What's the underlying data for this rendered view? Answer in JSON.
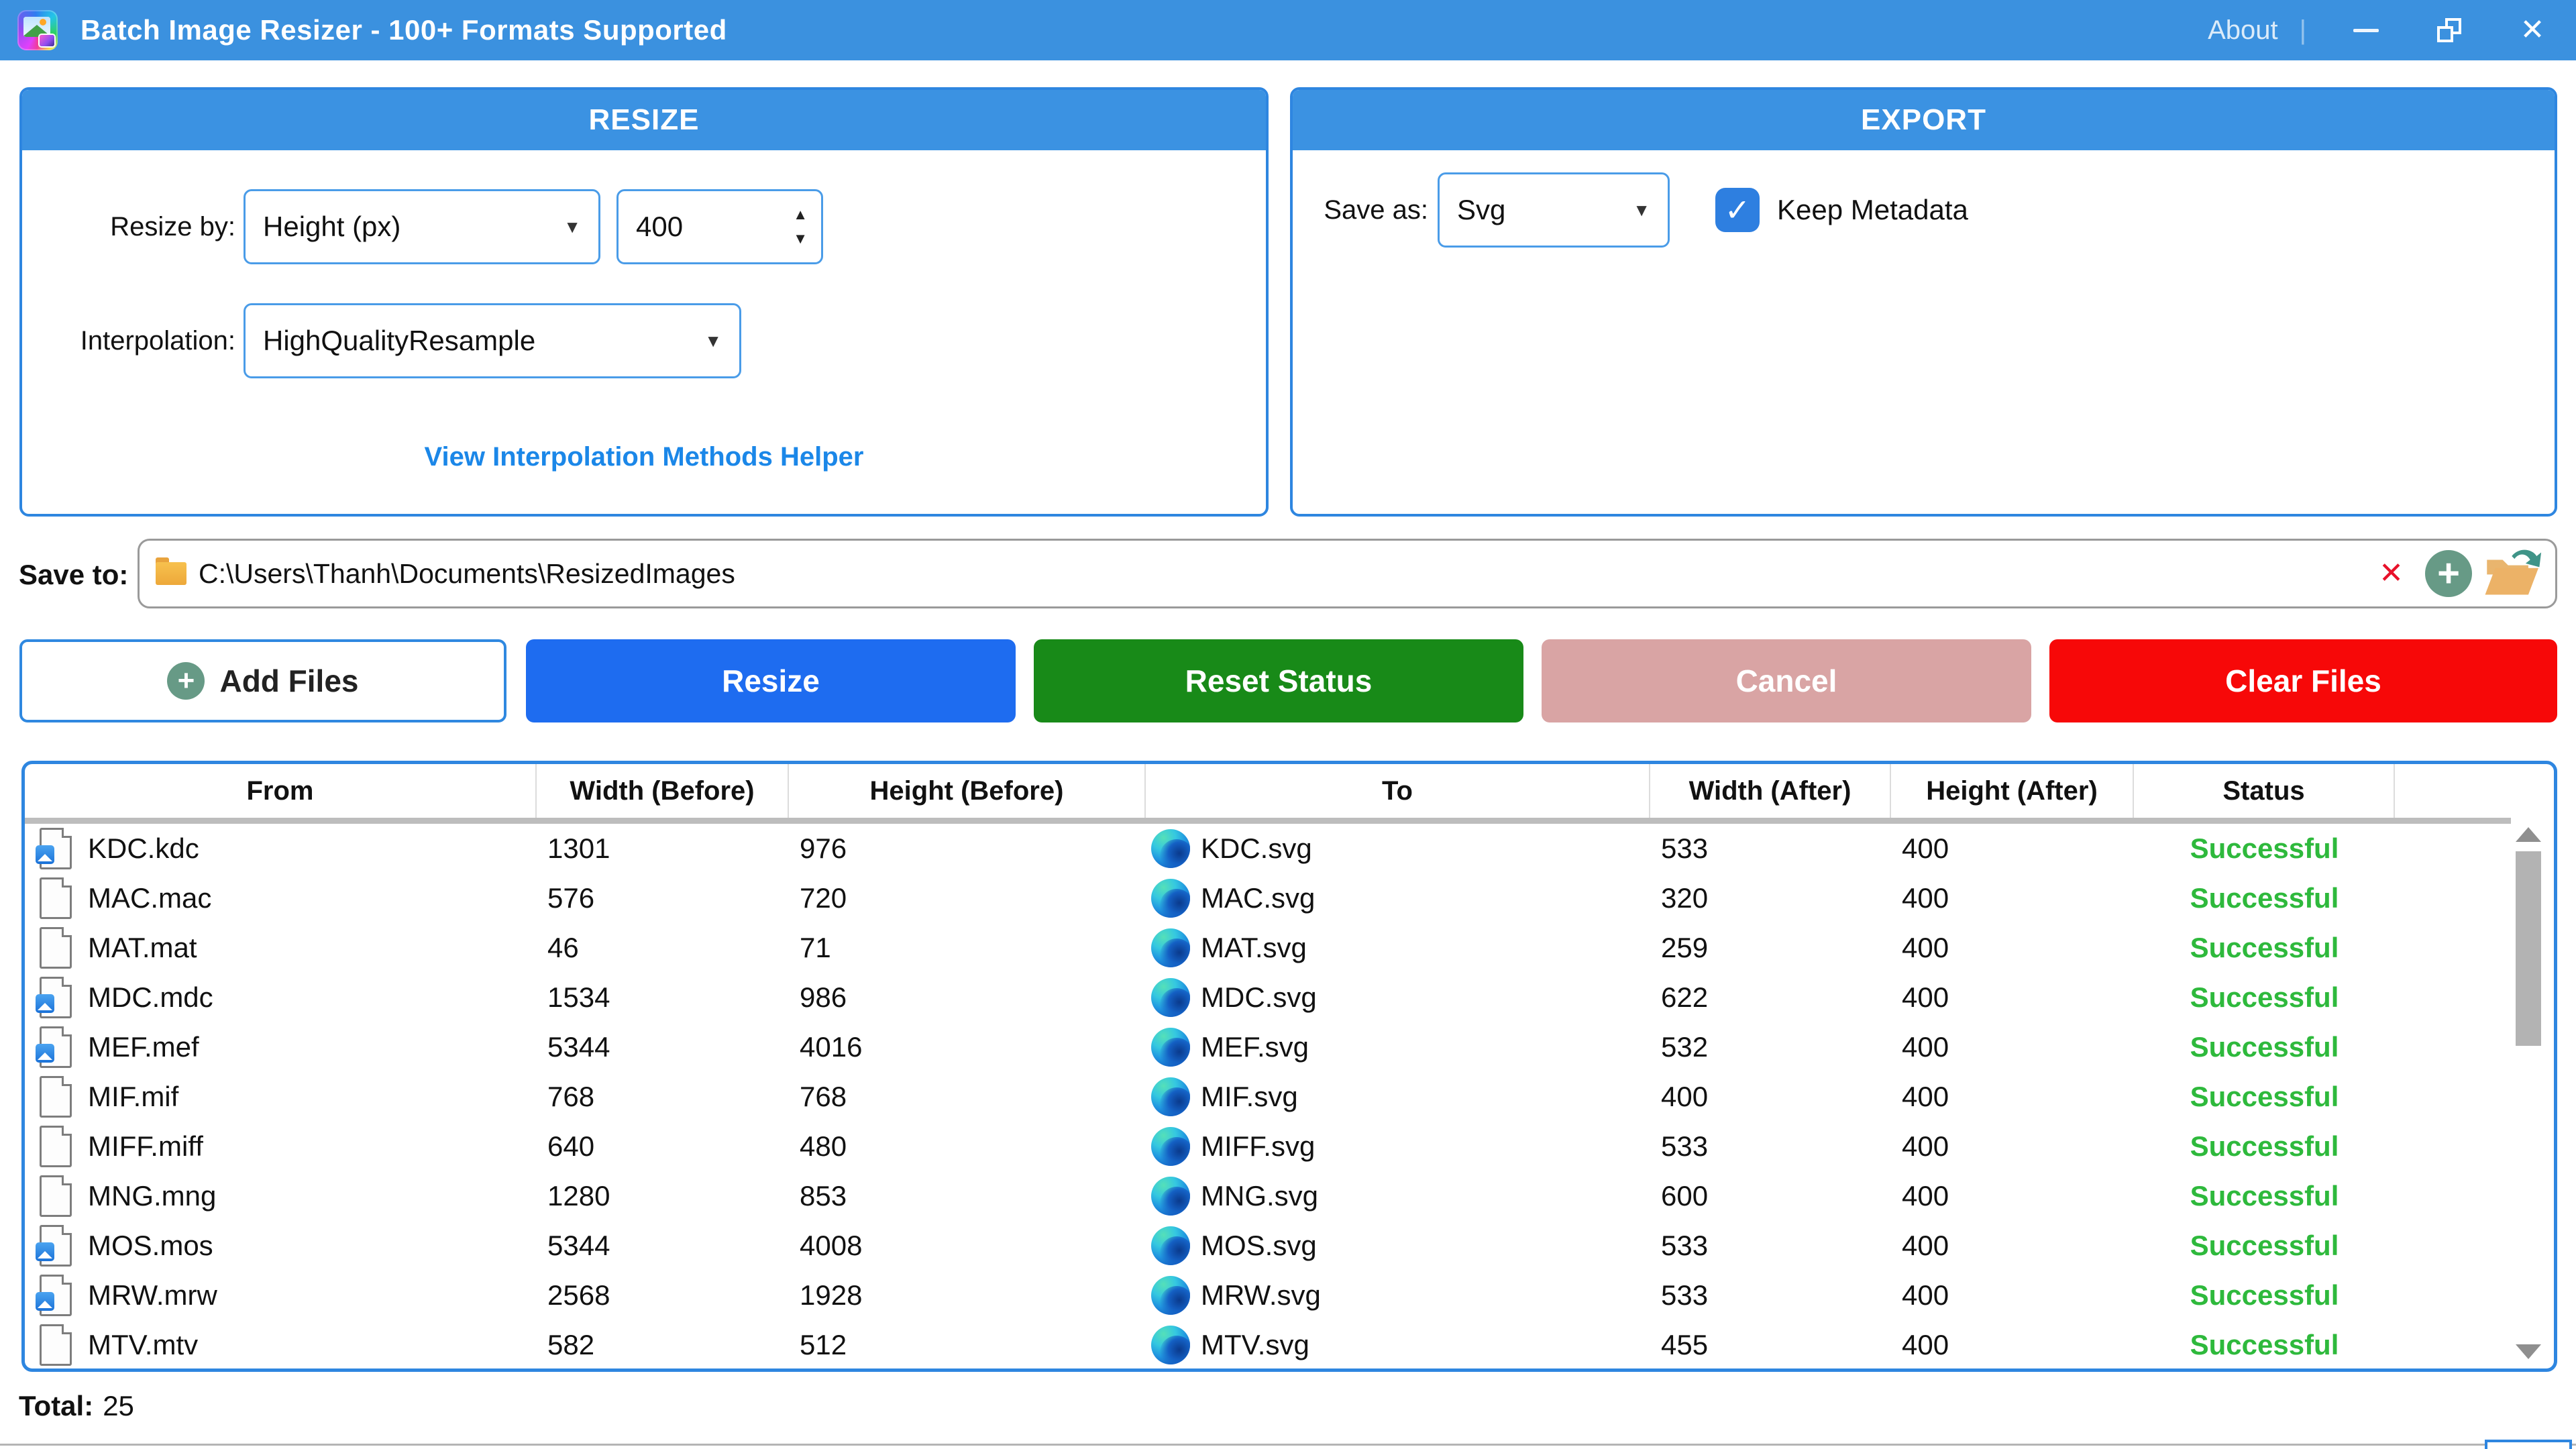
{
  "titlebar": {
    "title": "Batch Image Resizer - 100+ Formats Supported",
    "about": "About",
    "divider": "|"
  },
  "icons": {
    "dropdown_arrow": "▼",
    "spinner_up": "▲",
    "spinner_down": "▼",
    "check": "✓",
    "plus": "+",
    "clear_x": "✕",
    "close": "✕"
  },
  "resize_panel": {
    "header": "RESIZE",
    "resize_by_label": "Resize by:",
    "resize_by_value": "Height (px)",
    "amount_value": "400",
    "interpolation_label": "Interpolation:",
    "interpolation_value": "HighQualityResample",
    "helper_link": "View Interpolation Methods Helper"
  },
  "export_panel": {
    "header": "EXPORT",
    "save_as_label": "Save as:",
    "save_as_value": "Svg",
    "keep_metadata_label": "Keep Metadata",
    "keep_metadata_checked": true
  },
  "save_to": {
    "label": "Save to:",
    "path": "C:\\Users\\Thanh\\Documents\\ResizedImages"
  },
  "actions": {
    "add_files": "Add Files",
    "resize": "Resize",
    "reset_status": "Reset Status",
    "cancel": "Cancel",
    "clear_files": "Clear Files"
  },
  "table": {
    "columns": [
      "From",
      "Width (Before)",
      "Height (Before)",
      "To",
      "Width (After)",
      "Height (After)",
      "Status"
    ],
    "rows": [
      {
        "from": "KDC.kdc",
        "width_before": 1301,
        "height_before": 976,
        "to": "KDC.svg",
        "width_after": 533,
        "height_after": 400,
        "status": "Successful",
        "image_icon": true
      },
      {
        "from": "MAC.mac",
        "width_before": 576,
        "height_before": 720,
        "to": "MAC.svg",
        "width_after": 320,
        "height_after": 400,
        "status": "Successful",
        "image_icon": false
      },
      {
        "from": "MAT.mat",
        "width_before": 46,
        "height_before": 71,
        "to": "MAT.svg",
        "width_after": 259,
        "height_after": 400,
        "status": "Successful",
        "image_icon": false
      },
      {
        "from": "MDC.mdc",
        "width_before": 1534,
        "height_before": 986,
        "to": "MDC.svg",
        "width_after": 622,
        "height_after": 400,
        "status": "Successful",
        "image_icon": true
      },
      {
        "from": "MEF.mef",
        "width_before": 5344,
        "height_before": 4016,
        "to": "MEF.svg",
        "width_after": 532,
        "height_after": 400,
        "status": "Successful",
        "image_icon": true
      },
      {
        "from": "MIF.mif",
        "width_before": 768,
        "height_before": 768,
        "to": "MIF.svg",
        "width_after": 400,
        "height_after": 400,
        "status": "Successful",
        "image_icon": false
      },
      {
        "from": "MIFF.miff",
        "width_before": 640,
        "height_before": 480,
        "to": "MIFF.svg",
        "width_after": 533,
        "height_after": 400,
        "status": "Successful",
        "image_icon": false
      },
      {
        "from": "MNG.mng",
        "width_before": 1280,
        "height_before": 853,
        "to": "MNG.svg",
        "width_after": 600,
        "height_after": 400,
        "status": "Successful",
        "image_icon": false
      },
      {
        "from": "MOS.mos",
        "width_before": 5344,
        "height_before": 4008,
        "to": "MOS.svg",
        "width_after": 533,
        "height_after": 400,
        "status": "Successful",
        "image_icon": true
      },
      {
        "from": "MRW.mrw",
        "width_before": 2568,
        "height_before": 1928,
        "to": "MRW.svg",
        "width_after": 533,
        "height_after": 400,
        "status": "Successful",
        "image_icon": true
      },
      {
        "from": "MTV.mtv",
        "width_before": 582,
        "height_before": 512,
        "to": "MTV.svg",
        "width_after": 455,
        "height_after": 400,
        "status": "Successful",
        "image_icon": false
      }
    ]
  },
  "footer": {
    "total_label": "Total:",
    "total_value": "25"
  },
  "colors": {
    "titlebar_blue": "#3b91df",
    "panel_accent_blue": "#2e86e0",
    "resize_button_blue": "#1e6cf0",
    "reset_green": "#188a18",
    "cancel_pink": "#d9a4a4",
    "clear_red": "#f70808",
    "link_blue": "#1b87e8",
    "status_green": "#2eb93c",
    "checkbox_blue": "#2e7fe0"
  }
}
